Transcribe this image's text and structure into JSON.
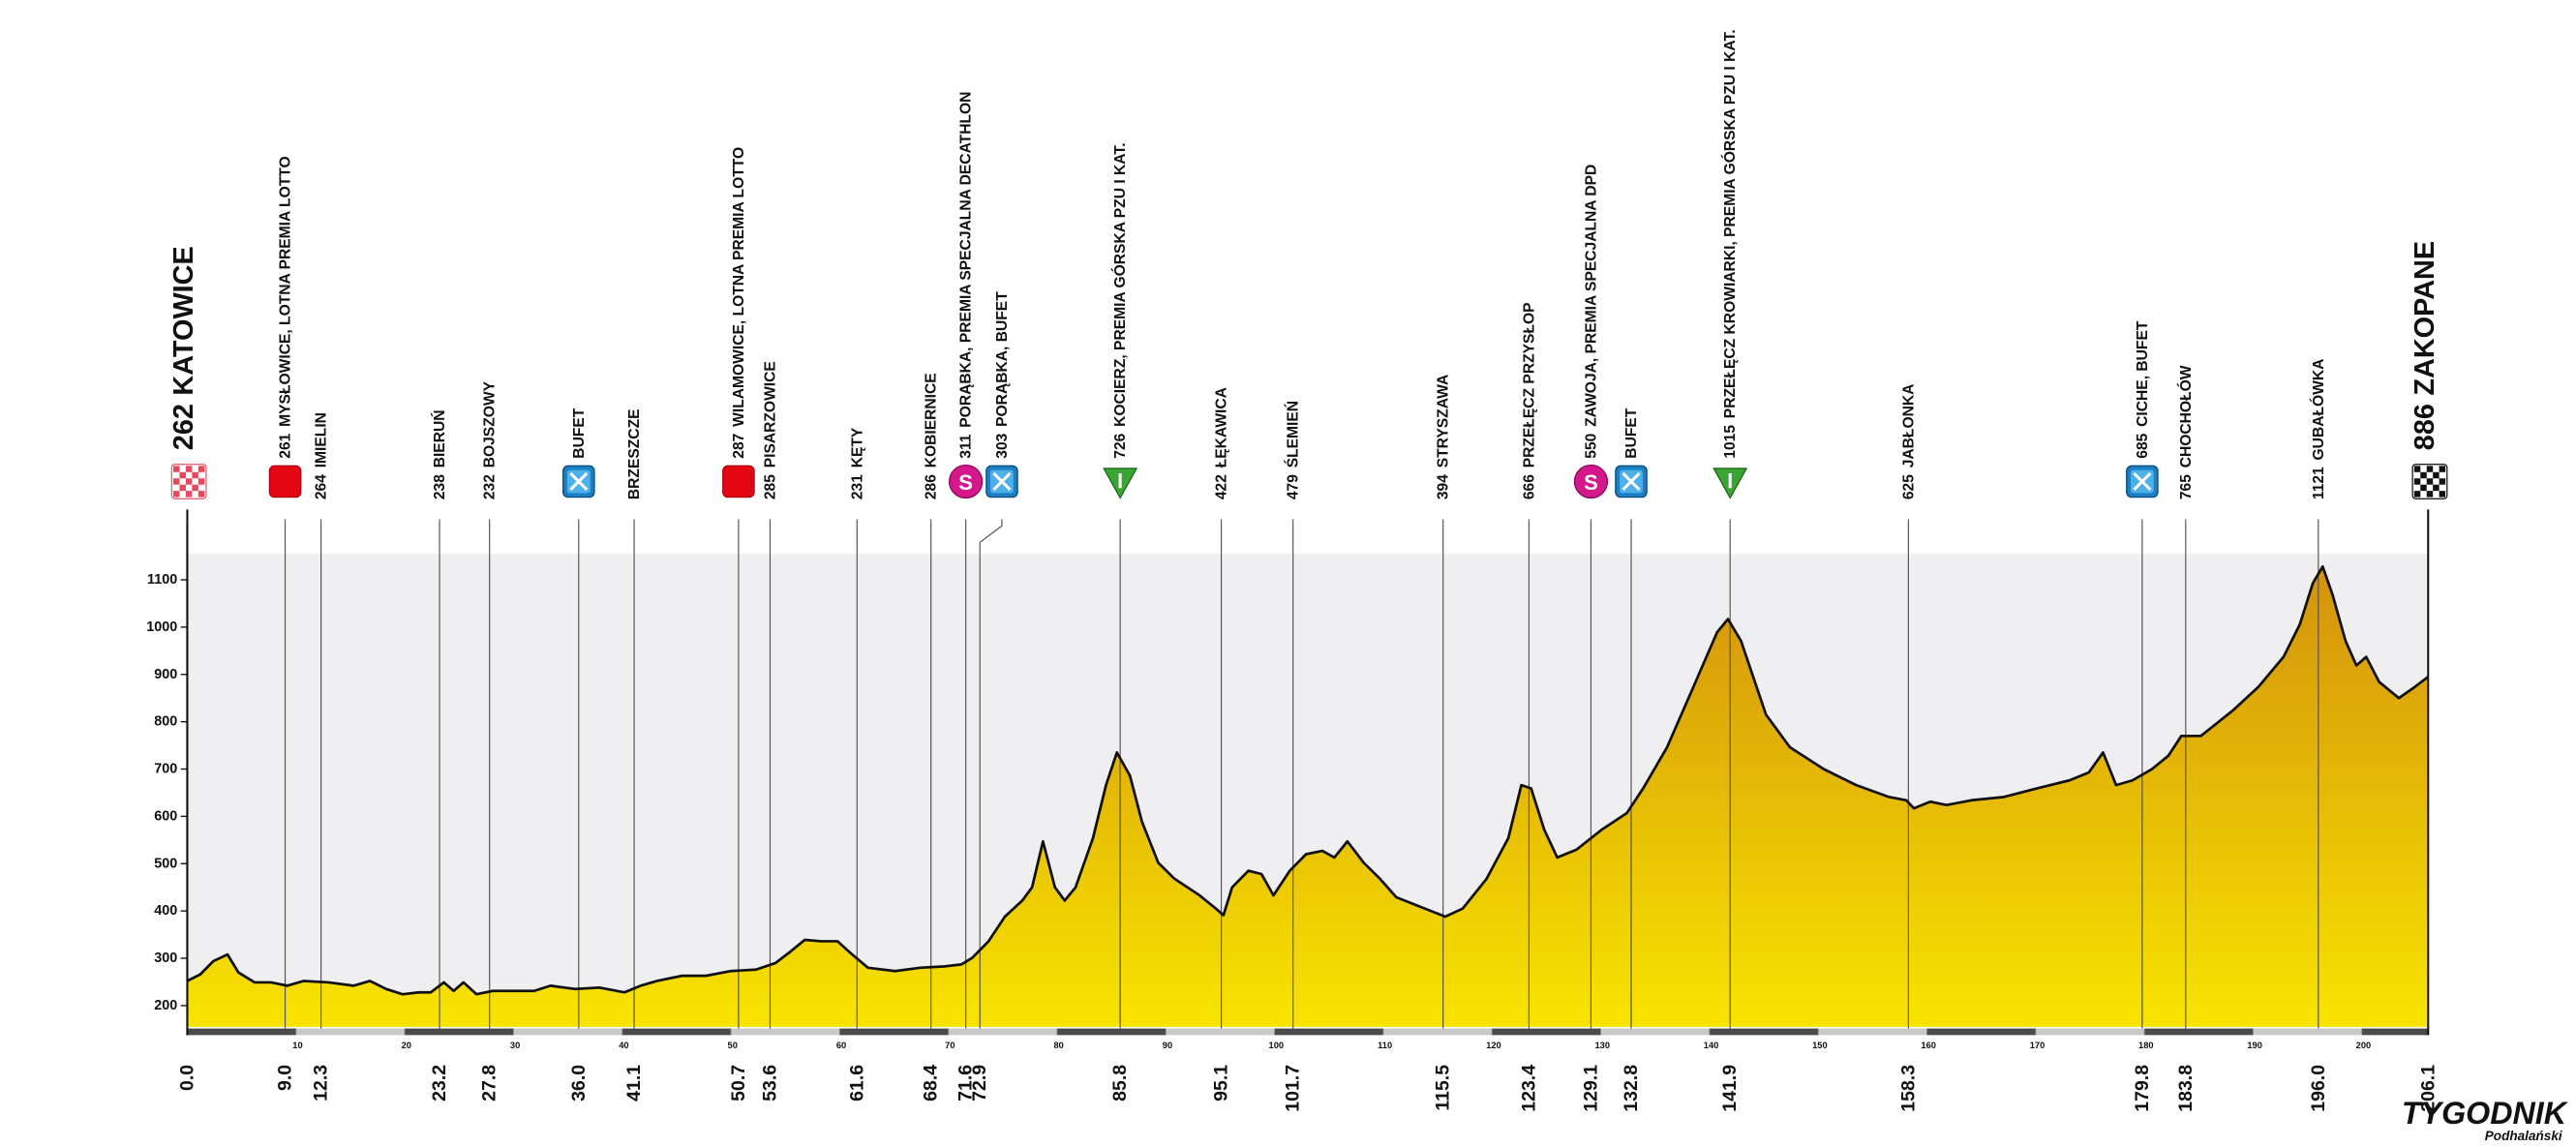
{
  "chart_data": {
    "type": "area",
    "x": [
      0,
      1.2,
      2.4,
      3.7,
      4.7,
      6.2,
      7.7,
      9.2,
      10.7,
      13,
      15.3,
      16.8,
      18.3,
      19.8,
      21.3,
      22.4,
      23.6,
      24.5,
      25.4,
      26.6,
      28.1,
      30.4,
      31.9,
      33.4,
      35.7,
      37.9,
      40.2,
      41.7,
      43.2,
      45.5,
      47.7,
      50,
      52.3,
      54.1,
      55.3,
      56.8,
      58.3,
      59.8,
      61,
      62.6,
      65.1,
      67.4,
      69.7,
      71.2,
      72.2,
      73.7,
      75.2,
      76.8,
      77.7,
      78.7,
      79.8,
      80.7,
      81.7,
      83.3,
      84.5,
      85.5,
      86.7,
      87.8,
      89.3,
      90.8,
      93.1,
      94.6,
      95.3,
      96.1,
      97.6,
      98.8,
      99.9,
      101.4,
      102.9,
      104.4,
      105.5,
      106.7,
      108.2,
      109.7,
      111.2,
      113.5,
      115.7,
      117.3,
      119.5,
      121.5,
      122.7,
      123.6,
      124.8,
      126,
      127.8,
      130.1,
      132.4,
      133.9,
      136.1,
      138.4,
      140.7,
      141.7,
      142.9,
      145.2,
      147.4,
      150.5,
      153.5,
      156.5,
      158.1,
      158.8,
      160.3,
      161.8,
      164.1,
      167.1,
      170.1,
      173.1,
      174.9,
      176.2,
      177.4,
      178.9,
      180.7,
      182.2,
      183.4,
      185.2,
      188.2,
      190.5,
      192.8,
      194.3,
      195.5,
      196.4,
      197.3,
      198.5,
      199.5,
      200.4,
      201.6,
      203.4,
      204.9,
      206.1
    ],
    "values": [
      252,
      266,
      294,
      308,
      270,
      249,
      249,
      242,
      252,
      249,
      242,
      252,
      235,
      224,
      228,
      228,
      249,
      231,
      249,
      224,
      231,
      231,
      231,
      242,
      235,
      238,
      228,
      242,
      252,
      263,
      263,
      273,
      276,
      290,
      311,
      339,
      336,
      336,
      311,
      280,
      273,
      280,
      283,
      287,
      301,
      336,
      388,
      422,
      450,
      547,
      450,
      422,
      450,
      554,
      666,
      735,
      686,
      589,
      502,
      468,
      433,
      405,
      391,
      450,
      485,
      478,
      433,
      485,
      520,
      527,
      513,
      547,
      502,
      468,
      429,
      408,
      388,
      405,
      468,
      554,
      666,
      659,
      572,
      513,
      530,
      572,
      607,
      659,
      746,
      867,
      989,
      1017,
      971,
      815,
      746,
      700,
      666,
      641,
      634,
      617,
      631,
      624,
      634,
      641,
      659,
      676,
      693,
      735,
      666,
      676,
      700,
      728,
      770,
      770,
      825,
      874,
      937,
      1006,
      1093,
      1128,
      1069,
      971,
      919,
      937,
      884,
      850,
      874,
      895
    ],
    "xlim": [
      0,
      206.1
    ],
    "ylim": [
      155,
      1155
    ],
    "yticks": [
      200,
      300,
      400,
      500,
      600,
      700,
      800,
      900,
      1000,
      1100
    ],
    "xticks": [
      10,
      20,
      30,
      40,
      50,
      60,
      70,
      80,
      90,
      100,
      110,
      120,
      130,
      140,
      150,
      160,
      170,
      180,
      190,
      200
    ],
    "color_top": "#d3920c",
    "color_bottom": "#f8e400",
    "line_color": "#111111",
    "icon_labels": {
      "special": "S"
    },
    "waypoints": [
      {
        "km": {
          "value": 0,
          "label": "0.0"
        },
        "elevation": 262,
        "name": "KATOWICE",
        "icon": "start"
      },
      {
        "km": {
          "value": 9,
          "label": "9.0"
        },
        "elevation": 261,
        "name": "MYSŁOWICE, LOTNA PREMIA LOTTO",
        "icon": "sprint"
      },
      {
        "km": 12.3,
        "elevation": 264,
        "name": "IMIELIN"
      },
      {
        "km": 23.2,
        "elevation": 238,
        "name": "BIERUŃ"
      },
      {
        "km": 27.8,
        "elevation": 232,
        "name": "BOJSZOWY"
      },
      {
        "km": {
          "value": 36,
          "label": "36.0"
        },
        "name": "BUFET",
        "icon": "feed"
      },
      {
        "km": 41.1,
        "name": "BRZESZCZE"
      },
      {
        "km": 50.7,
        "elevation": 287,
        "name": "WILAMOWICE, LOTNA PREMIA LOTTO",
        "icon": "sprint"
      },
      {
        "km": 53.6,
        "elevation": 285,
        "name": "PISARZOWICE"
      },
      {
        "km": 61.6,
        "elevation": 231,
        "name": "KĘTY"
      },
      {
        "km": 68.4,
        "elevation": 286,
        "name": "KOBIERNICE"
      },
      {
        "km": 71.6,
        "elevation": 311,
        "name": "PORĄBKA, PREMIA SPECJALNA DECATHLON",
        "icon": "special"
      },
      {
        "km": 72.9,
        "elevation": 303,
        "name": "PORĄBKA, BUFET",
        "icon": "feed"
      },
      {
        "km": 85.8,
        "elevation": 726,
        "name": "KOCIERZ, PREMIA GÓRSKA PZU I KAT.",
        "icon": "climb"
      },
      {
        "km": 95.1,
        "elevation": 422,
        "name": "ŁĘKAWICA"
      },
      {
        "km": 101.7,
        "elevation": 479,
        "name": "ŚLEMIEŃ"
      },
      {
        "km": 115.5,
        "elevation": 394,
        "name": "STRYSZAWA"
      },
      {
        "km": 123.4,
        "elevation": 666,
        "name": "PRZEŁĘCZ PRZYSŁOP"
      },
      {
        "km": 129.1,
        "elevation": 550,
        "name": "ZAWOJA, PREMIA SPECJALNA DPD",
        "icon": "special"
      },
      {
        "km": 132.8,
        "name": "BUFET",
        "icon": "feed"
      },
      {
        "km": 141.9,
        "elevation": 1015,
        "name": "PRZEŁĘCZ KROWIARKI, PREMIA GÓRSKA PZU I KAT.",
        "icon": "climb"
      },
      {
        "km": 158.3,
        "elevation": 625,
        "name": "JABŁONKA"
      },
      {
        "km": 179.8,
        "elevation": 685,
        "name": "CICHE, BUFET",
        "icon": "feed"
      },
      {
        "km": 183.8,
        "elevation": 765,
        "name": "CHOCHOŁÓW"
      },
      {
        "km": {
          "value": 196,
          "label": "196.0"
        },
        "elevation": 1121,
        "name": "GUBAŁÓWKA"
      },
      {
        "km": 206.1,
        "elevation": 886,
        "name": "ZAKOPANE",
        "icon": "finish"
      }
    ]
  },
  "logo": {
    "title": "TYGODNIK",
    "subtitle": "Podhalański"
  }
}
